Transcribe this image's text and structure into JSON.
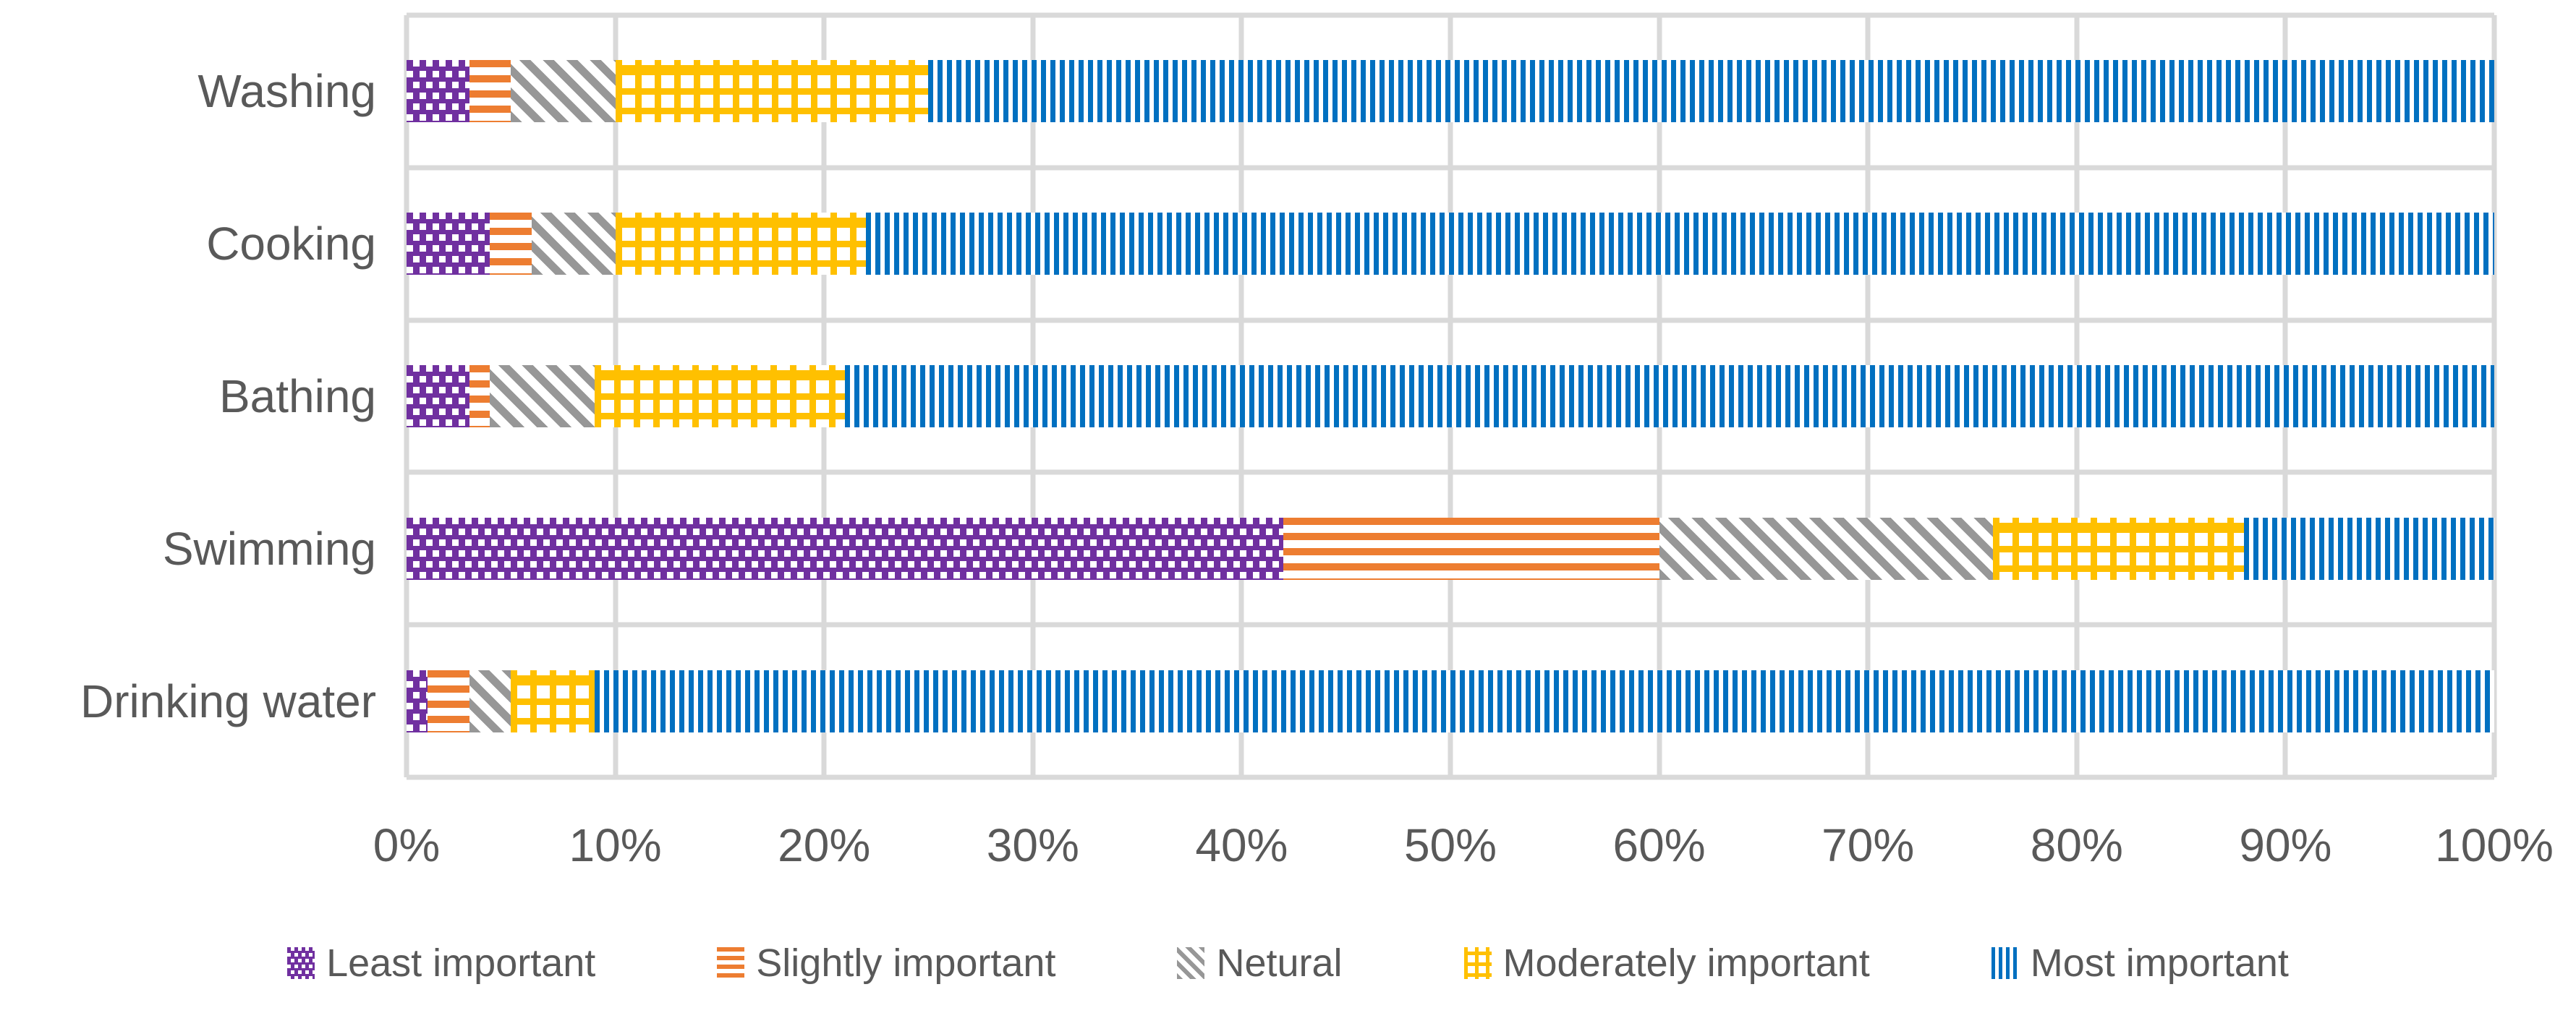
{
  "chart_data": {
    "type": "bar",
    "stacked": true,
    "orientation": "horizontal",
    "title": "",
    "categories": [
      "Washing",
      "Cooking",
      "Bathing",
      "Swimming",
      "Drinking water"
    ],
    "series": [
      {
        "name": "Least important",
        "pattern": "dots",
        "color": "#7030A0",
        "values": [
          3,
          4,
          3,
          42,
          1
        ]
      },
      {
        "name": "Slightly important",
        "pattern": "horizontal-stripes",
        "color": "#ED7D31",
        "values": [
          2,
          2,
          1,
          18,
          2
        ]
      },
      {
        "name": "Netural",
        "pattern": "diagonal-stripes",
        "color": "#979797",
        "values": [
          5,
          4,
          5,
          16,
          2
        ]
      },
      {
        "name": "Moderately important",
        "pattern": "grid",
        "color": "#FFC000",
        "values": [
          15,
          12,
          12,
          12,
          4
        ]
      },
      {
        "name": "Most important",
        "pattern": "vertical-stripes",
        "color": "#0070C0",
        "values": [
          75,
          78,
          79,
          12,
          91
        ]
      }
    ],
    "x_axis": {
      "min": 0,
      "max": 100,
      "unit": "%",
      "ticks": [
        "0%",
        "10%",
        "20%",
        "30%",
        "40%",
        "50%",
        "60%",
        "70%",
        "80%",
        "90%",
        "100%"
      ]
    },
    "legend_position": "bottom",
    "gridlines": {
      "vertical": true,
      "band_separators": true,
      "color": "#D9D9D9"
    },
    "text_color": "#595959",
    "background_color": "#FFFFFF"
  }
}
